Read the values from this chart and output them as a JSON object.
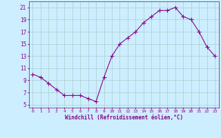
{
  "x": [
    0,
    1,
    2,
    3,
    4,
    5,
    6,
    7,
    8,
    9,
    10,
    11,
    12,
    13,
    14,
    15,
    16,
    17,
    18,
    19,
    20,
    21,
    22,
    23
  ],
  "y": [
    10.0,
    9.5,
    8.5,
    7.5,
    6.5,
    6.5,
    6.5,
    6.0,
    5.5,
    9.5,
    13.0,
    15.0,
    16.0,
    17.0,
    18.5,
    19.5,
    20.5,
    20.5,
    21.0,
    19.5,
    19.0,
    17.0,
    14.5,
    13.0
  ],
  "line_color": "#880088",
  "marker": "+",
  "markersize": 4,
  "linewidth": 0.8,
  "bg_color": "#cceeff",
  "grid_color": "#aacccc",
  "xlabel": "Windchill (Refroidissement éolien,°C)",
  "xlabel_color": "#880088",
  "ylabel_ticks": [
    5,
    7,
    9,
    11,
    13,
    15,
    17,
    19,
    21
  ],
  "ytick_labels": [
    "5",
    "7",
    "9",
    "11",
    "13",
    "15",
    "17",
    "19",
    "21"
  ],
  "xtick_labels": [
    "0",
    "1",
    "2",
    "3",
    "4",
    "5",
    "6",
    "7",
    "8",
    "9",
    "10",
    "11",
    "12",
    "13",
    "14",
    "15",
    "16",
    "17",
    "18",
    "19",
    "20",
    "21",
    "22",
    "23"
  ],
  "ylim": [
    4.5,
    22.0
  ],
  "xlim": [
    -0.5,
    23.5
  ],
  "tick_color": "#880088",
  "axis_color": "#880088"
}
